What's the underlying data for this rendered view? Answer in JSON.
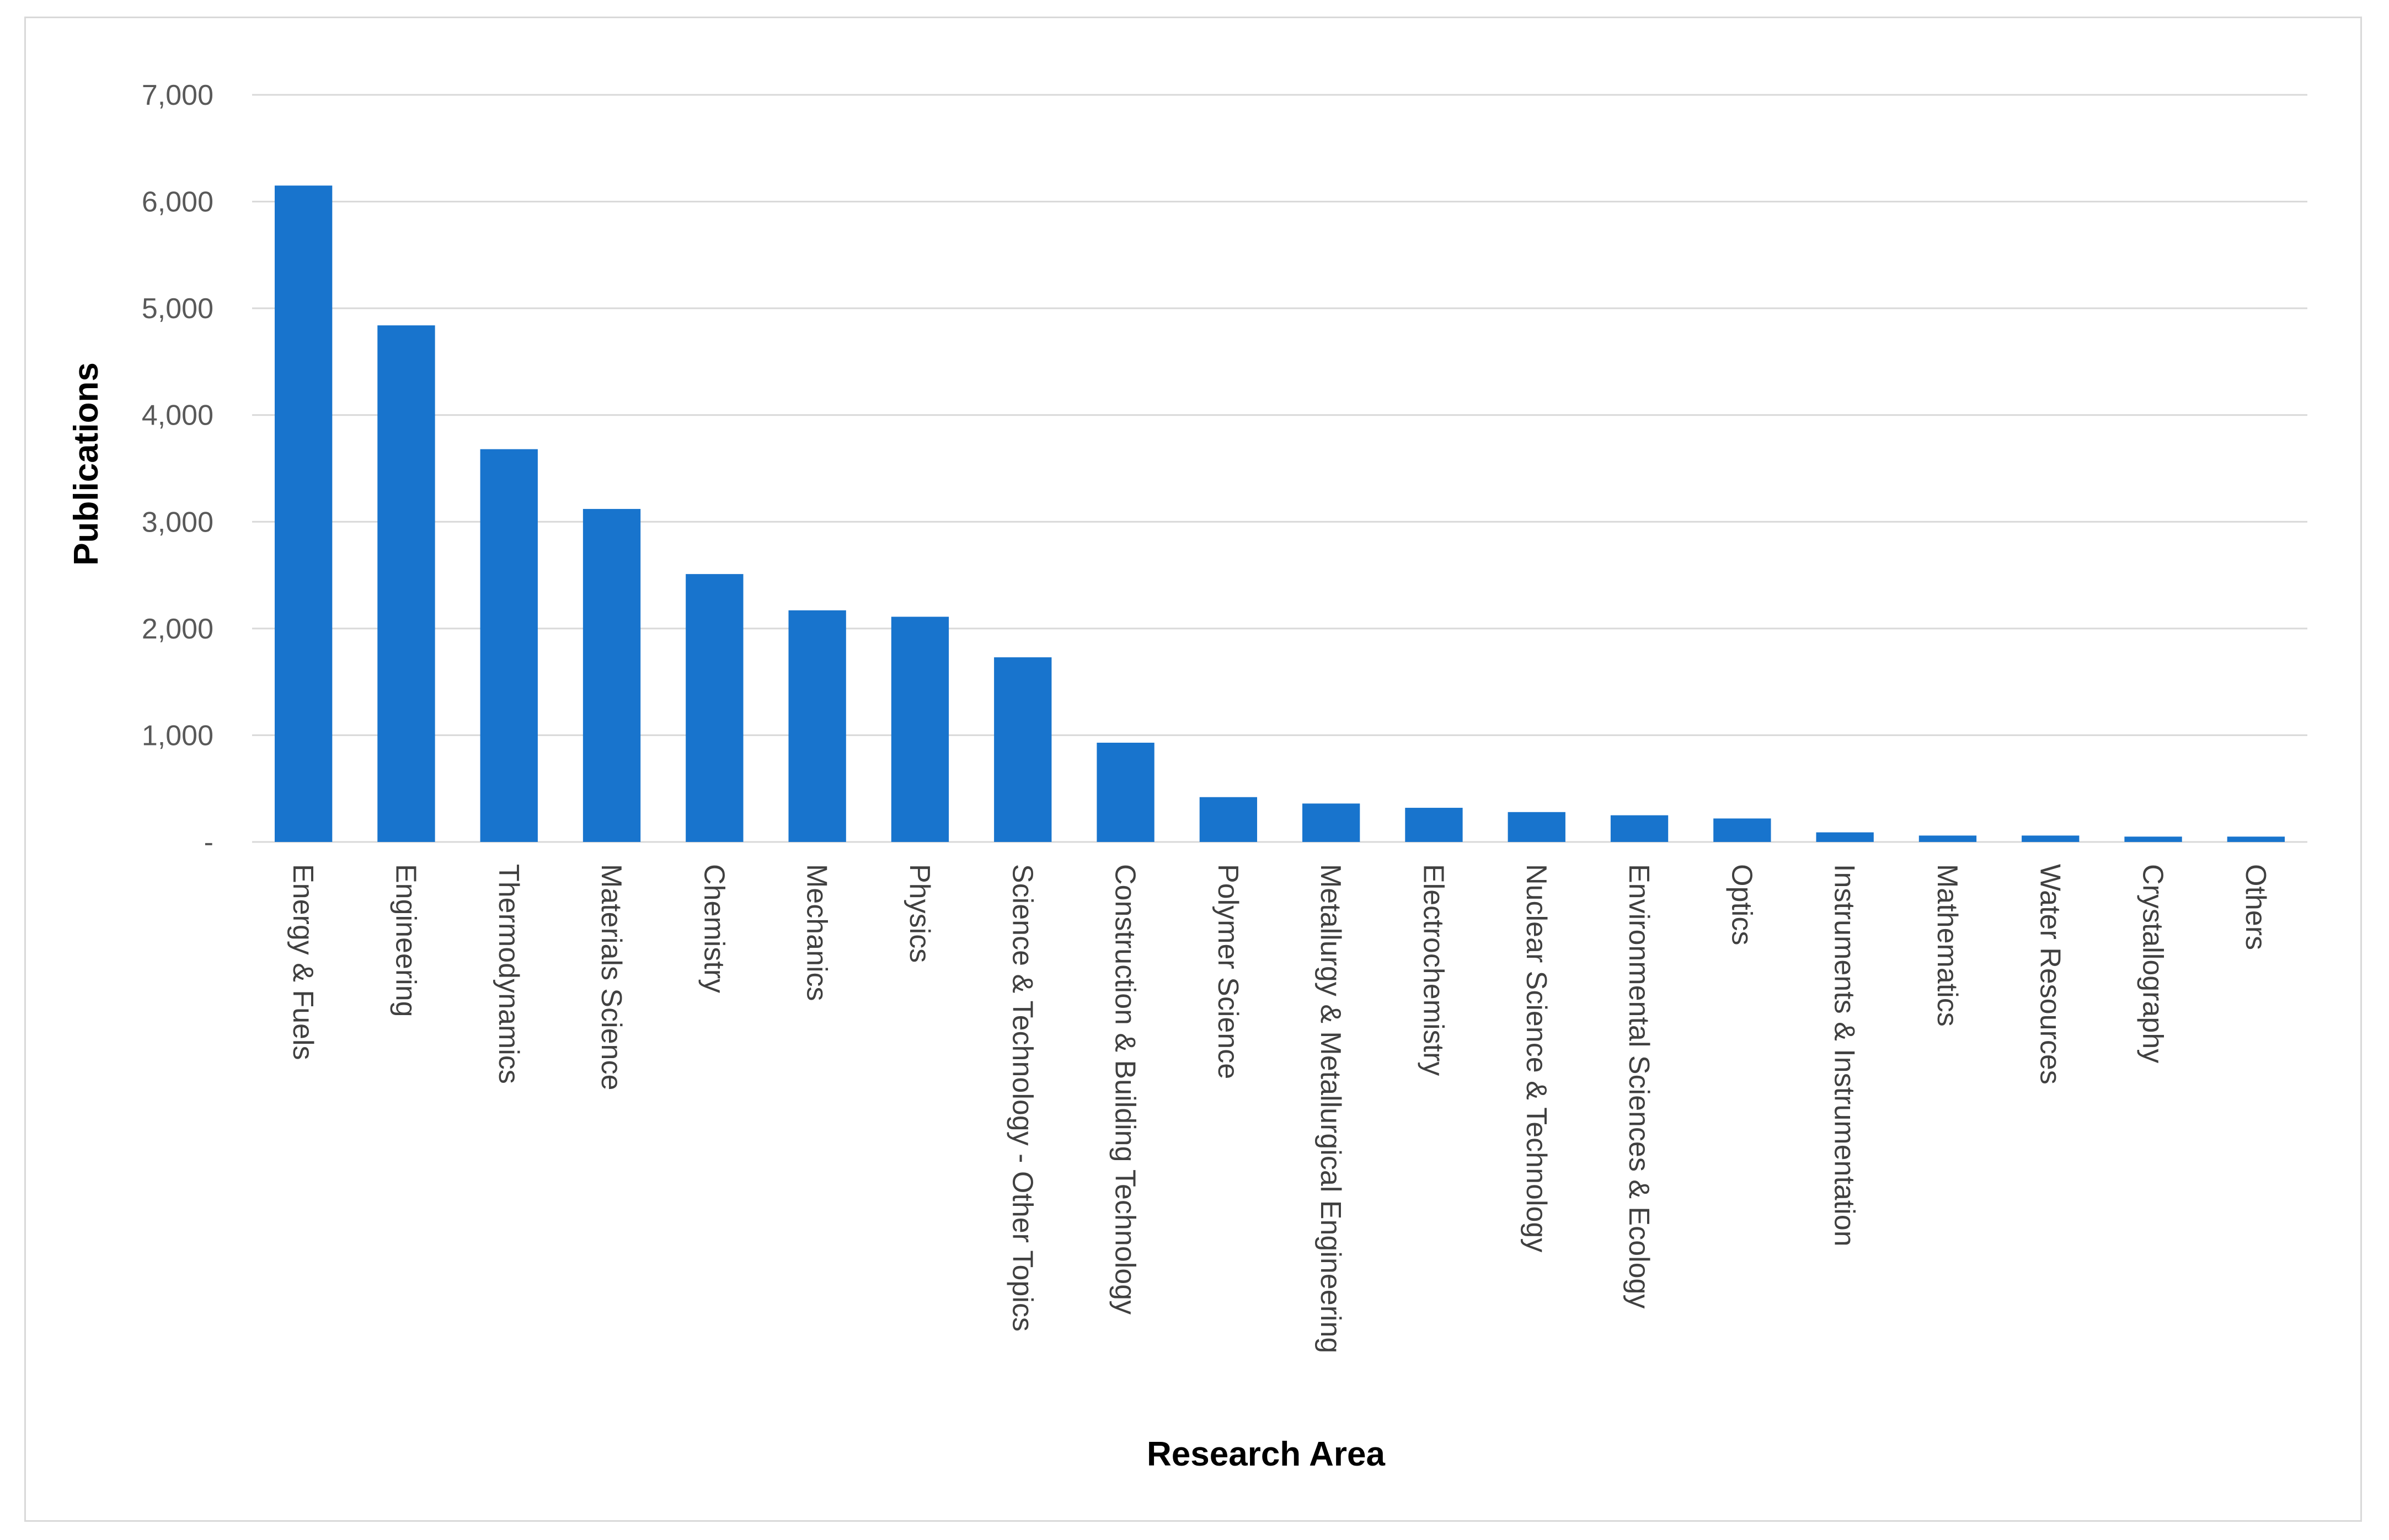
{
  "chart_data": {
    "type": "bar",
    "title": "",
    "xlabel": "Research Area",
    "ylabel": "Publications",
    "ylim": [
      0,
      7000
    ],
    "yticks": [
      0,
      1000,
      2000,
      3000,
      4000,
      5000,
      6000,
      7000
    ],
    "ytick_labels": [
      "-",
      "1,000",
      "2,000",
      "3,000",
      "4,000",
      "5,000",
      "6,000",
      "7,000"
    ],
    "grid": true,
    "legend": "none",
    "bar_color": "#1874cd",
    "categories": [
      "Energy & Fuels",
      "Engineering",
      "Thermodynamics",
      "Materials Science",
      "Chemistry",
      "Mechanics",
      "Physics",
      "Science & Technology - Other Topics",
      "Construction & Building Technology",
      "Polymer Science",
      "Metallurgy & Metallurgical Engineering",
      "Electrochemistry",
      "Nuclear Science & Technology",
      "Environmental Sciences & Ecology",
      "Optics",
      "Instruments & Instrumentation",
      "Mathematics",
      "Water Resources",
      "Crystallography",
      "Others"
    ],
    "values": [
      6150,
      4840,
      3680,
      3120,
      2510,
      2170,
      2110,
      1730,
      930,
      420,
      360,
      320,
      280,
      250,
      220,
      90,
      60,
      60,
      50,
      50
    ]
  }
}
